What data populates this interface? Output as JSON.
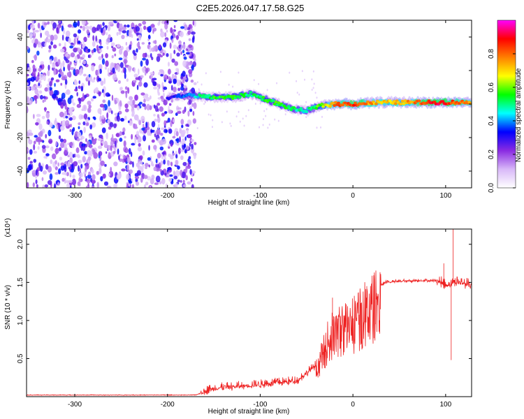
{
  "title": "C2E5.2026.047.17.58.G25",
  "chart_data": [
    {
      "type": "heatmap",
      "xlabel": "Height of straight line (km)",
      "ylabel": "Frequency (Hz)",
      "xlim": [
        -352,
        128
      ],
      "ylim": [
        -50,
        50
      ],
      "x_ticks": [
        "-300",
        "-200",
        "-100",
        "0",
        "100"
      ],
      "y_ticks": [
        "40",
        "20",
        "0",
        "-20",
        "-40"
      ],
      "colorbar": {
        "label": "Normalized spectral amplitude",
        "range": [
          0,
          1
        ],
        "ticks": [
          "0.0",
          "0.2",
          "0.4",
          "0.6",
          "0.8"
        ],
        "colors": [
          "#ffffff",
          "#d8b8f8",
          "#8a2be2",
          "#0000ff",
          "#00ffff",
          "#00ff00",
          "#ffff00",
          "#ff8000",
          "#ff0000",
          "#ff00ff"
        ]
      },
      "ridge": [
        {
          "x": -200,
          "y": 4,
          "a": 0.25
        },
        {
          "x": -185,
          "y": 5,
          "a": 0.35
        },
        {
          "x": -170,
          "y": 5,
          "a": 0.45
        },
        {
          "x": -150,
          "y": 4,
          "a": 0.55
        },
        {
          "x": -130,
          "y": 4,
          "a": 0.55
        },
        {
          "x": -110,
          "y": 6,
          "a": 0.5
        },
        {
          "x": -95,
          "y": 3,
          "a": 0.55
        },
        {
          "x": -80,
          "y": 0,
          "a": 0.55
        },
        {
          "x": -65,
          "y": -3,
          "a": 0.5
        },
        {
          "x": -50,
          "y": -4,
          "a": 0.45
        },
        {
          "x": -35,
          "y": -1,
          "a": 0.6
        },
        {
          "x": -20,
          "y": 0,
          "a": 0.8
        },
        {
          "x": 0,
          "y": 0,
          "a": 0.85
        },
        {
          "x": 30,
          "y": 1,
          "a": 0.7
        },
        {
          "x": 60,
          "y": 1,
          "a": 0.75
        },
        {
          "x": 90,
          "y": 1,
          "a": 0.9
        },
        {
          "x": 128,
          "y": 1,
          "a": 0.75
        }
      ]
    },
    {
      "type": "line",
      "xlabel": "Height of straight line (km)",
      "ylabel": "SNR (10 * v/v)",
      "y_multiplier": "(x10⁴)",
      "xlim": [
        -352,
        128
      ],
      "ylim": [
        0,
        2.2
      ],
      "x_ticks": [
        "-300",
        "-200",
        "-100",
        "0",
        "100"
      ],
      "y_ticks": [
        "0.5",
        "1.0",
        "1.5",
        "2.0"
      ],
      "color": "#ee2222",
      "envelope": [
        {
          "x": -352,
          "y": 0.02
        },
        {
          "x": -170,
          "y": 0.02
        },
        {
          "x": -150,
          "y": 0.1
        },
        {
          "x": -100,
          "y": 0.15
        },
        {
          "x": -60,
          "y": 0.2
        },
        {
          "x": -40,
          "y": 0.4
        },
        {
          "x": -25,
          "y": 0.9
        },
        {
          "x": -10,
          "y": 1.05
        },
        {
          "x": 0,
          "y": 1.1
        },
        {
          "x": 20,
          "y": 1.35
        },
        {
          "x": 35,
          "y": 1.5
        },
        {
          "x": 70,
          "y": 1.52
        },
        {
          "x": 90,
          "y": 1.52
        },
        {
          "x": 100,
          "y": 1.45
        },
        {
          "x": 110,
          "y": 1.5
        },
        {
          "x": 128,
          "y": 1.45
        }
      ],
      "peaks": [
        {
          "x": 108,
          "y": 2.2
        },
        {
          "x": 98,
          "y": 1.75
        },
        {
          "x": 106,
          "y": 0.48
        },
        {
          "x": -22,
          "y": 1.3
        },
        {
          "x": 15,
          "y": 1.45
        }
      ]
    }
  ]
}
